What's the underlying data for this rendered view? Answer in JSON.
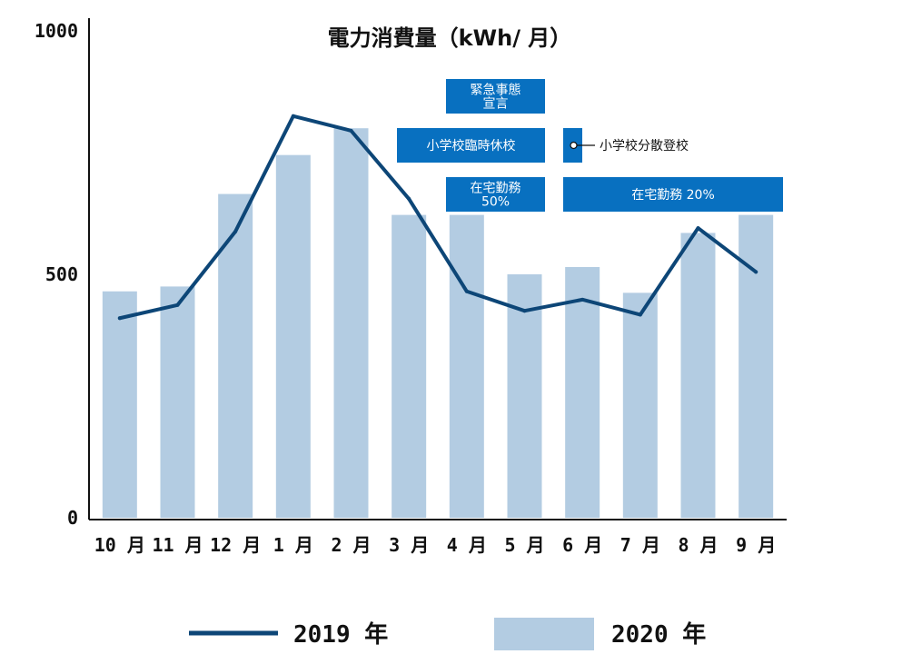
{
  "chart_data": {
    "type": "bar",
    "title": "電力消費量（kWh/ 月）",
    "categories": [
      "10 月",
      "11 月",
      "12 月",
      "1 月",
      "2 月",
      "3 月",
      "4 月",
      "5 月",
      "6 月",
      "7 月",
      "8 月",
      "9 月"
    ],
    "series": [
      {
        "name": "2020 年",
        "kind": "bar",
        "color": "#b3cce2",
        "values": [
          465,
          475,
          665,
          745,
          800,
          622,
          622,
          500,
          515,
          462,
          585,
          622
        ]
      },
      {
        "name": "2019 年",
        "kind": "line",
        "color": "#0d4677",
        "values": [
          410,
          437,
          588,
          825,
          795,
          655,
          465,
          425,
          448,
          417,
          595,
          505
        ]
      }
    ],
    "yticks": [
      0,
      500,
      1000
    ],
    "ylim": [
      0,
      1000
    ],
    "annotations": [
      {
        "lines": [
          "緊急事態",
          "宣言"
        ],
        "color": "#0870c0"
      },
      {
        "lines": [
          "小学校臨時休校"
        ],
        "color": "#0870c0"
      },
      {
        "lines": [
          ""
        ],
        "side_label": "小学校分散登校",
        "color": "#0870c0"
      },
      {
        "lines": [
          "在宅勤務",
          "50%"
        ],
        "color": "#0870c0"
      },
      {
        "lines": [
          "在宅勤務 20%"
        ],
        "color": "#0870c0"
      }
    ],
    "legend_position": "bottom"
  }
}
